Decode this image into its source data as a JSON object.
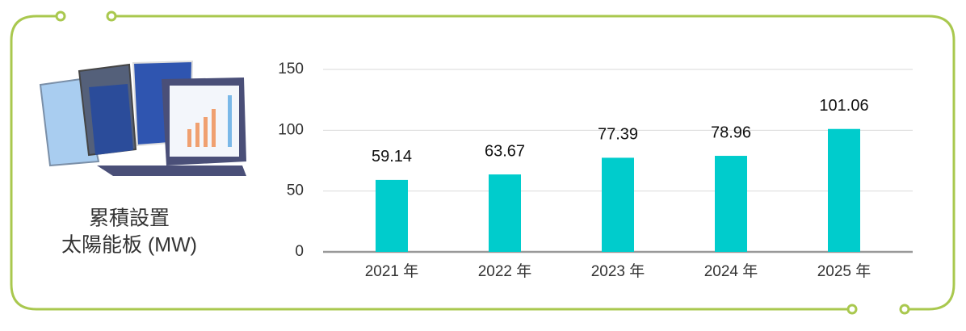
{
  "chart_data": {
    "type": "bar",
    "label_lines": [
      "累積設置",
      "太陽能板 (MW)"
    ],
    "categories": [
      "2021 年",
      "2022 年",
      "2023 年",
      "2024 年",
      "2025 年"
    ],
    "values": [
      59.14,
      63.67,
      77.39,
      78.96,
      101.06
    ],
    "color": "#00cccc",
    "ylim": [
      0,
      150
    ],
    "yticks": [
      0,
      50,
      100,
      150
    ],
    "grid": true
  }
}
